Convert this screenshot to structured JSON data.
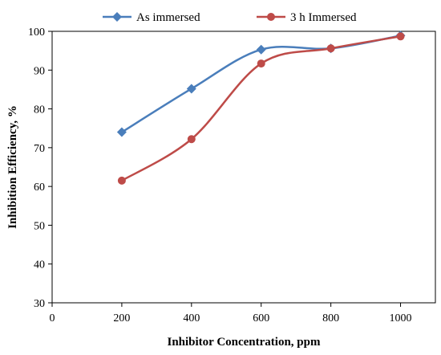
{
  "chart_data": {
    "type": "line",
    "xlabel": "Inhibitor Concentration, ppm",
    "ylabel": "Inhibition Efficiency, %",
    "xlim": [
      0,
      1100
    ],
    "ylim": [
      30,
      100
    ],
    "xticks": [
      0,
      200,
      400,
      600,
      800,
      1000
    ],
    "yticks": [
      30,
      40,
      50,
      60,
      70,
      80,
      90,
      100
    ],
    "grid": "none",
    "legend_position": "top",
    "smoothed": true,
    "series": [
      {
        "name": "As immersed",
        "color": "#4a7ebb",
        "marker": "diamond",
        "x": [
          200,
          400,
          600,
          800,
          1000
        ],
        "y": [
          74.0,
          85.2,
          95.3,
          95.6,
          98.9
        ]
      },
      {
        "name": "3 h Immersed",
        "color": "#be4b48",
        "marker": "circle",
        "x": [
          200,
          400,
          600,
          800,
          1000
        ],
        "y": [
          61.5,
          72.2,
          91.7,
          95.6,
          98.7
        ]
      }
    ]
  }
}
